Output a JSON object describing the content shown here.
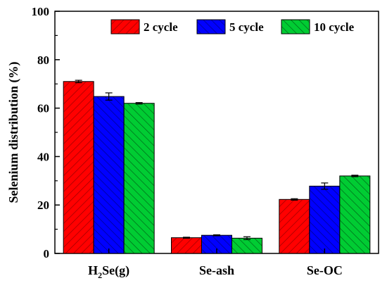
{
  "chart_data": {
    "type": "bar",
    "title": "",
    "xlabel": "",
    "ylabel": "Selenium distribution (%)",
    "ylim": [
      0,
      100
    ],
    "yticks": [
      0,
      20,
      40,
      60,
      80,
      100
    ],
    "categories": [
      {
        "main": "H",
        "sub": "2",
        "rest": "Se(g)"
      },
      {
        "main": "Se-ash",
        "sub": "",
        "rest": ""
      },
      {
        "main": "Se-OC",
        "sub": "",
        "rest": ""
      }
    ],
    "series": [
      {
        "name": "2 cycle",
        "color": "#ff0000",
        "values": [
          71.0,
          6.5,
          22.3
        ],
        "errors": [
          0.5,
          0.2,
          0.3
        ]
      },
      {
        "name": "5 cycle",
        "color": "#0000ff",
        "values": [
          64.8,
          7.5,
          27.8
        ],
        "errors": [
          1.5,
          0.2,
          1.3
        ]
      },
      {
        "name": "10 cycle",
        "color": "#00cc33",
        "values": [
          62.0,
          6.3,
          32.0
        ],
        "errors": [
          0.3,
          0.6,
          0.3
        ]
      }
    ],
    "legend_position": "top-right",
    "grid": false
  }
}
